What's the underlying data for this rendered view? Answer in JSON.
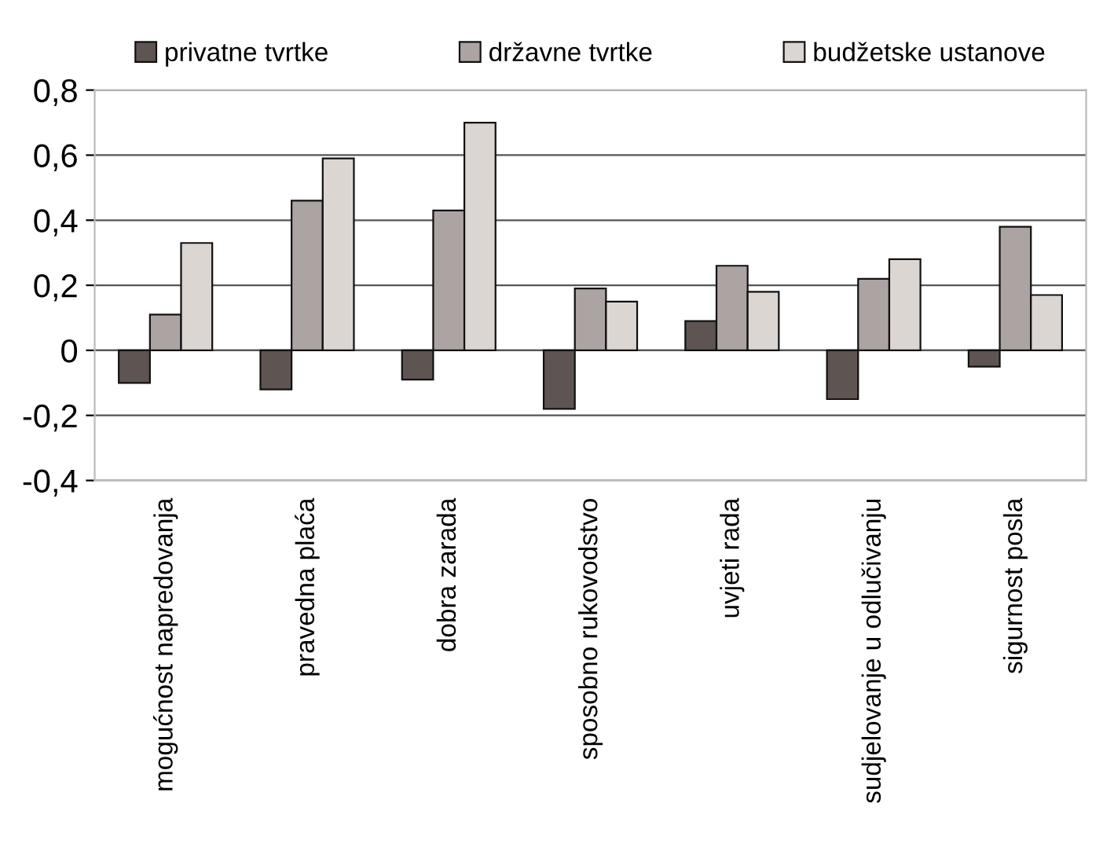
{
  "chart_data": {
    "type": "bar",
    "categories": [
      "mogućnost napredovanja",
      "pravedna plaća",
      "dobra zarada",
      "sposobno rukovodstvo",
      "uvjeti rada",
      "sudjelovanje u odlučivanju",
      "sigurnost posla"
    ],
    "series": [
      {
        "name": "privatne tvrtke",
        "color": "#5e5553",
        "values": [
          -0.1,
          -0.12,
          -0.09,
          -0.18,
          0.09,
          -0.15,
          -0.05
        ]
      },
      {
        "name": "državne tvrtke",
        "color": "#aca4a2",
        "values": [
          0.11,
          0.46,
          0.43,
          0.19,
          0.26,
          0.22,
          0.38
        ]
      },
      {
        "name": "budžetske ustanove",
        "color": "#dcd6d3",
        "values": [
          0.33,
          0.59,
          0.7,
          0.15,
          0.18,
          0.28,
          0.17
        ]
      }
    ],
    "ylim": [
      -0.4,
      0.8
    ],
    "yticks": [
      {
        "value": -0.4,
        "label": "-0,4"
      },
      {
        "value": -0.2,
        "label": "-0,2"
      },
      0,
      {
        "value": 0.2,
        "label": "0,2"
      },
      {
        "value": 0.4,
        "label": "0,4"
      },
      {
        "value": 0.6,
        "label": "0,6"
      },
      {
        "value": 0.8,
        "label": "0,8"
      }
    ],
    "grid": "y",
    "legend": "top"
  }
}
